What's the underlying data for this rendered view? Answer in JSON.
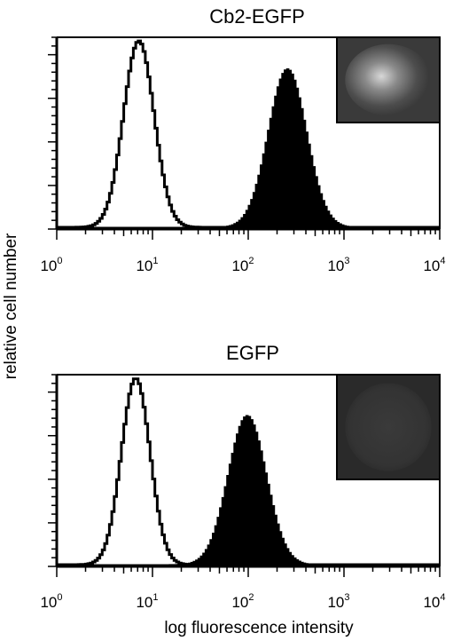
{
  "ylabel": "relative cell number",
  "xlabel": "log fluorescence intensity",
  "chart_data": [
    {
      "type": "histogram",
      "title": "Cb2-EGFP",
      "x_scale": "log",
      "xlim": [
        1,
        10000
      ],
      "ylim": [
        0,
        1
      ],
      "x_tick_labels": [
        {
          "base": "10",
          "exp": "0"
        },
        {
          "base": "10",
          "exp": "1"
        },
        {
          "base": "10",
          "exp": "2"
        },
        {
          "base": "10",
          "exp": "3"
        },
        {
          "base": "10",
          "exp": "4"
        }
      ],
      "y_ticks_labeled": false,
      "series": [
        {
          "style": "open outline",
          "peak_x": 7,
          "log_width": 0.16,
          "peak_height": 1.0
        },
        {
          "style": "filled black",
          "peak_x": 250,
          "log_width": 0.2,
          "peak_height": 0.85
        }
      ],
      "inset": {
        "description_color": "#3a3a3a",
        "cell_color": "bright"
      }
    },
    {
      "type": "histogram",
      "title": "EGFP",
      "x_scale": "log",
      "xlim": [
        1,
        10000
      ],
      "ylim": [
        0,
        1
      ],
      "x_tick_labels": [
        {
          "base": "10",
          "exp": "0"
        },
        {
          "base": "10",
          "exp": "1"
        },
        {
          "base": "10",
          "exp": "2"
        },
        {
          "base": "10",
          "exp": "3"
        },
        {
          "base": "10",
          "exp": "4"
        }
      ],
      "y_ticks_labeled": false,
      "series": [
        {
          "style": "open outline",
          "peak_x": 6.5,
          "log_width": 0.15,
          "peak_height": 1.0
        },
        {
          "style": "filled black",
          "peak_x": 95,
          "log_width": 0.2,
          "peak_height": 0.8
        }
      ],
      "inset": {
        "description_color": "#2a2a2a",
        "cell_color": "dim"
      }
    }
  ]
}
